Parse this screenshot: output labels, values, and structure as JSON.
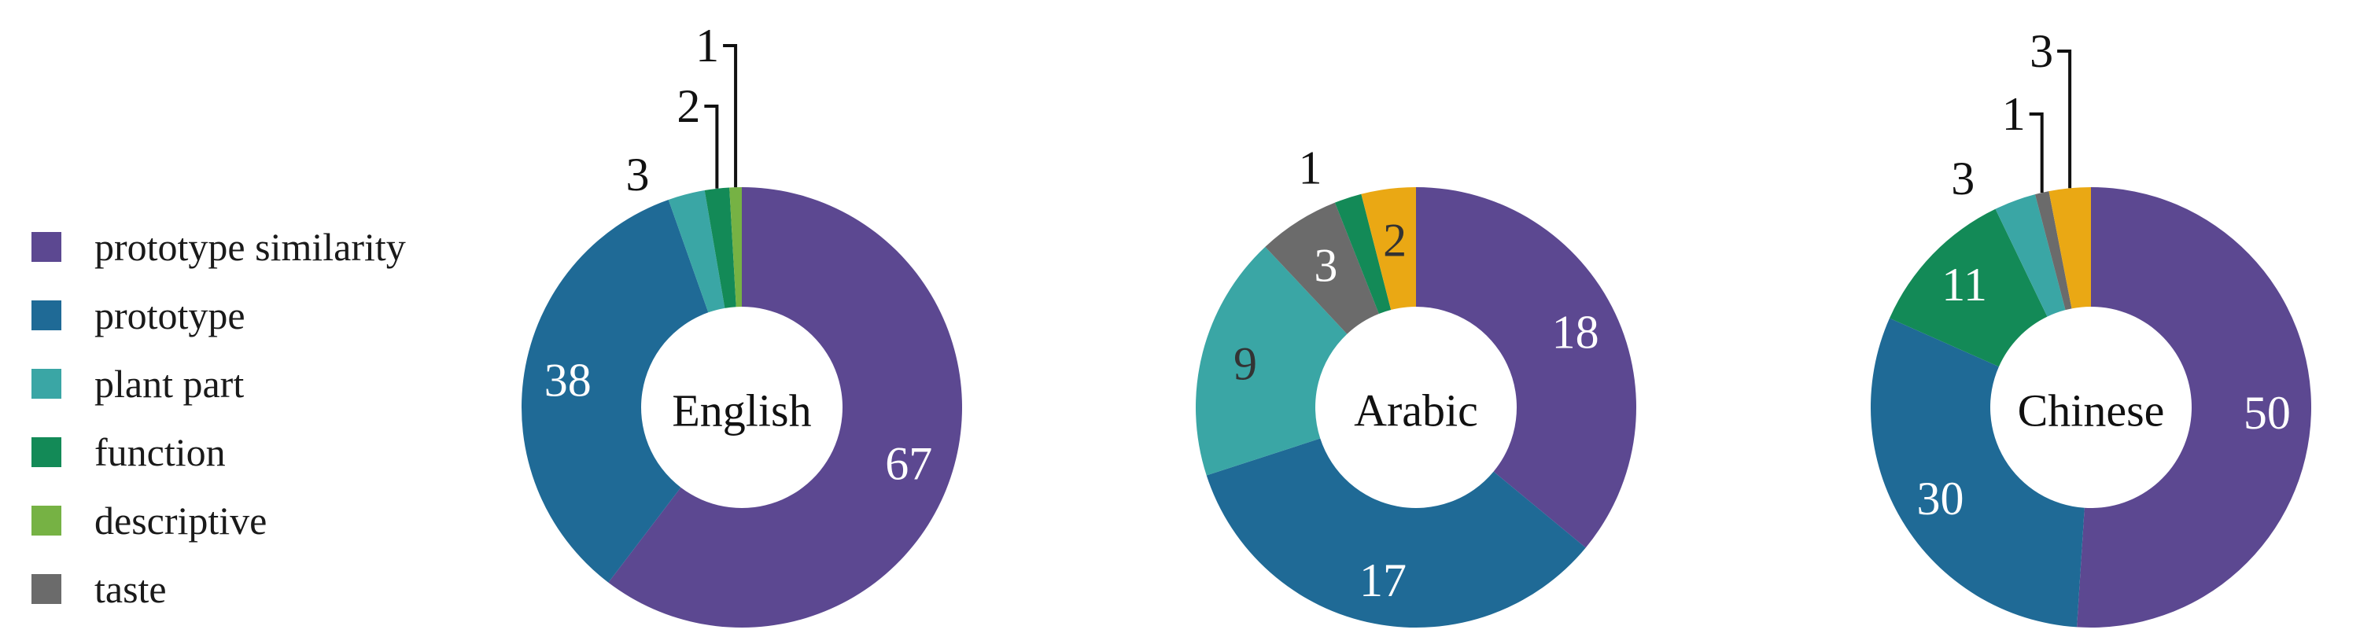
{
  "legend": {
    "items": [
      {
        "label": "prototype similarity",
        "color": "#5c4891"
      },
      {
        "label": "prototype",
        "color": "#1f6a96"
      },
      {
        "label": "plant part",
        "color": "#3aa6a5"
      },
      {
        "label": "function",
        "color": "#138a57"
      },
      {
        "label": "descriptive",
        "color": "#76b244"
      },
      {
        "label": "taste",
        "color": "#6b6b6b"
      }
    ]
  },
  "extra_colors": {
    "unlabeled_category": "#eaa814"
  },
  "chart_data": [
    {
      "type": "pie",
      "center_label": "English",
      "slices": [
        {
          "category": "prototype similarity",
          "value": 67,
          "color": "#5c4891"
        },
        {
          "category": "prototype",
          "value": 38,
          "color": "#1f6a96"
        },
        {
          "category": "plant part",
          "value": 3,
          "color": "#3aa6a5"
        },
        {
          "category": "function",
          "value": 2,
          "color": "#138a57"
        },
        {
          "category": "descriptive",
          "value": 1,
          "color": "#76b244"
        }
      ]
    },
    {
      "type": "pie",
      "center_label": "Arabic",
      "slices": [
        {
          "category": "prototype similarity",
          "value": 18,
          "color": "#5c4891"
        },
        {
          "category": "prototype",
          "value": 17,
          "color": "#1f6a96"
        },
        {
          "category": "plant part",
          "value": 9,
          "color": "#3aa6a5"
        },
        {
          "category": "taste",
          "value": 3,
          "color": "#6b6b6b"
        },
        {
          "category": "function",
          "value": 1,
          "color": "#138a57"
        },
        {
          "category": "",
          "value": 2,
          "color": "#eaa814"
        }
      ]
    },
    {
      "type": "pie",
      "center_label": "Chinese",
      "slices": [
        {
          "category": "prototype similarity",
          "value": 50,
          "color": "#5c4891"
        },
        {
          "category": "prototype",
          "value": 30,
          "color": "#1f6a96"
        },
        {
          "category": "function",
          "value": 11,
          "color": "#138a57"
        },
        {
          "category": "plant part",
          "value": 3,
          "color": "#3aa6a5"
        },
        {
          "category": "taste",
          "value": 1,
          "color": "#6b6b6b"
        },
        {
          "category": "",
          "value": 3,
          "color": "#eaa814"
        }
      ]
    }
  ]
}
